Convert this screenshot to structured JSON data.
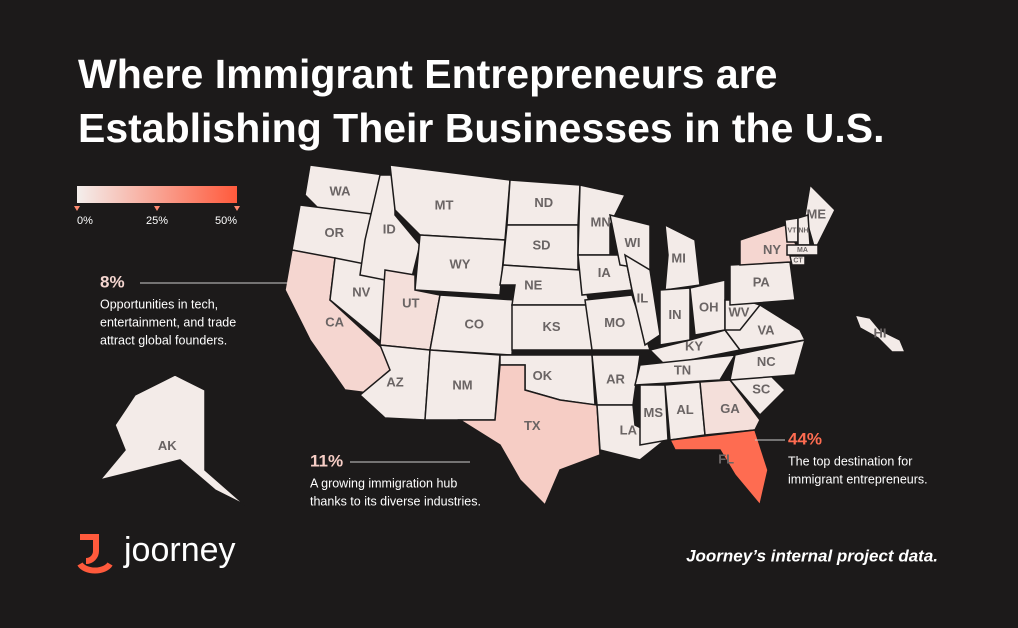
{
  "title_lines": [
    "Where Immigrant Entrepreneurs are",
    "Establishing Their Businesses in the U.S."
  ],
  "legend": {
    "colors": [
      "#f3eeec",
      "#ff5a3c"
    ],
    "ticks": [
      {
        "value": 0,
        "label": "0%"
      },
      {
        "value": 25,
        "label": "25%"
      },
      {
        "value": 50,
        "label": "50%"
      }
    ]
  },
  "states": [
    {
      "label": "WA",
      "value": 1
    },
    {
      "label": "OR",
      "value": 1
    },
    {
      "label": "CA",
      "value": 8,
      "value_label": "8%",
      "note": [
        "Opportunities in tech,",
        "entertainment, and trade",
        "attract global founders."
      ]
    },
    {
      "label": "NV",
      "value": 1
    },
    {
      "label": "ID",
      "value": 1
    },
    {
      "label": "MT",
      "value": 1
    },
    {
      "label": "WY",
      "value": 1
    },
    {
      "label": "UT",
      "value": 5
    },
    {
      "label": "CO",
      "value": 1
    },
    {
      "label": "AZ",
      "value": 1
    },
    {
      "label": "NM",
      "value": 1
    },
    {
      "label": "ND",
      "value": 1
    },
    {
      "label": "SD",
      "value": 1
    },
    {
      "label": "NE",
      "value": 1
    },
    {
      "label": "KS",
      "value": 1
    },
    {
      "label": "OK",
      "value": 1
    },
    {
      "label": "TX",
      "value": 11,
      "value_label": "11%",
      "note": [
        "A growing immigration hub",
        "thanks to its diverse industries."
      ]
    },
    {
      "label": "MN",
      "value": 1
    },
    {
      "label": "IA",
      "value": 1
    },
    {
      "label": "MO",
      "value": 1
    },
    {
      "label": "AR",
      "value": 1
    },
    {
      "label": "LA",
      "value": 1
    },
    {
      "label": "WI",
      "value": 1
    },
    {
      "label": "IL",
      "value": 1
    },
    {
      "label": "MI",
      "value": 1
    },
    {
      "label": "IN",
      "value": 1
    },
    {
      "label": "OH",
      "value": 1
    },
    {
      "label": "KY",
      "value": 1
    },
    {
      "label": "TN",
      "value": 1
    },
    {
      "label": "MS",
      "value": 1
    },
    {
      "label": "AL",
      "value": 1
    },
    {
      "label": "GA",
      "value": 5
    },
    {
      "label": "FL",
      "value": 44,
      "value_label": "44%",
      "note": [
        "The top destination for",
        "immigrant entrepreneurs."
      ]
    },
    {
      "label": "SC",
      "value": 1
    },
    {
      "label": "NC",
      "value": 1
    },
    {
      "label": "VA",
      "value": 1
    },
    {
      "label": "WV",
      "value": 1
    },
    {
      "label": "PA",
      "value": 1
    },
    {
      "label": "NY",
      "value": 8
    },
    {
      "label": "ME",
      "value": 1
    },
    {
      "label": "VT",
      "value": 1
    },
    {
      "label": "NH",
      "value": 1
    },
    {
      "label": "MA",
      "value": 1
    },
    {
      "label": "CT",
      "value": 1
    },
    {
      "label": "AK",
      "value": 1
    },
    {
      "label": "HI",
      "value": 1
    }
  ],
  "brand": "joorney",
  "source": "Joorney’s internal project data."
}
